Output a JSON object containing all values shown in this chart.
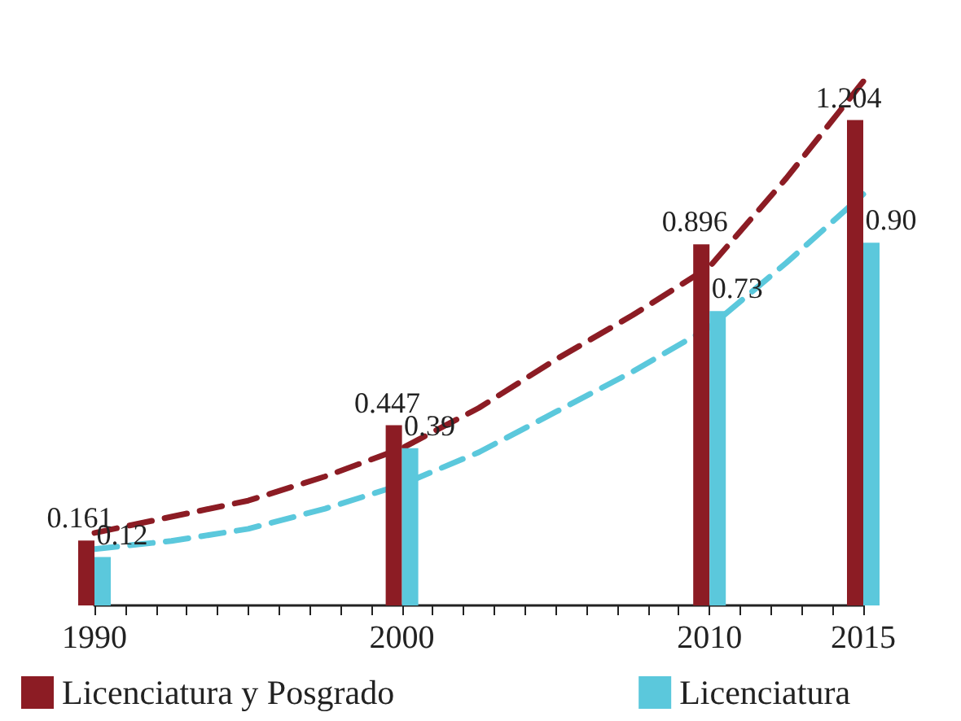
{
  "chart_data": {
    "type": "bar",
    "x": [
      1990,
      2000,
      2010,
      2015
    ],
    "xlim": [
      1990,
      2015
    ],
    "xticks": [
      1990,
      {
        "value": 1991,
        "label": null
      },
      {
        "value": 1992,
        "label": null
      },
      {
        "value": 1993,
        "label": null
      },
      {
        "value": 1994,
        "label": null
      },
      {
        "value": 1995,
        "label": null
      },
      {
        "value": 1996,
        "label": null
      },
      {
        "value": 1997,
        "label": null
      },
      {
        "value": 1998,
        "label": null
      },
      {
        "value": 1999,
        "label": null
      },
      2000,
      {
        "value": 2001,
        "label": null
      },
      {
        "value": 2002,
        "label": null
      },
      {
        "value": 2003,
        "label": null
      },
      {
        "value": 2004,
        "label": null
      },
      {
        "value": 2005,
        "label": null
      },
      {
        "value": 2006,
        "label": null
      },
      {
        "value": 2007,
        "label": null
      },
      {
        "value": 2008,
        "label": null
      },
      {
        "value": 2009,
        "label": null
      },
      2010,
      {
        "value": 2011,
        "label": null
      },
      {
        "value": 2012,
        "label": null
      },
      {
        "value": 2013,
        "label": null
      },
      {
        "value": 2014,
        "label": null
      },
      2015
    ],
    "series": [
      {
        "name": "Licenciatura y Posgrado",
        "color": "#8c1c24",
        "values": [
          0.161,
          0.447,
          0.896,
          1.204
        ],
        "value_labels": [
          "0.161",
          "0.447",
          "0.896",
          "1.204"
        ]
      },
      {
        "name": "Licenciatura",
        "color": "#5bc8dc",
        "values": [
          0.12,
          0.39,
          0.73,
          0.9
        ],
        "value_labels": [
          "0.12",
          "0.39",
          "0.73",
          "0.90"
        ]
      },
      {
        "type": "line",
        "color": "#8c1c24",
        "line_style": "dashed",
        "marker": "none",
        "x": [
          1990,
          1992.5,
          1995,
          1997.5,
          2000,
          2002.5,
          2005,
          2007.5,
          2010,
          2012.5,
          2015
        ],
        "values": [
          0.18,
          0.22,
          0.26,
          0.32,
          0.39,
          0.49,
          0.61,
          0.72,
          0.84,
          1.06,
          1.3
        ]
      },
      {
        "type": "line",
        "color": "#5bc8dc",
        "line_style": "dashed",
        "marker": "none",
        "x": [
          1990,
          1992.5,
          1995,
          1997.5,
          2000,
          2002.5,
          2005,
          2007.5,
          2010,
          2012.5,
          2015
        ],
        "values": [
          0.14,
          0.16,
          0.19,
          0.24,
          0.3,
          0.38,
          0.48,
          0.58,
          0.69,
          0.85,
          1.02
        ]
      }
    ],
    "legend": "bottom"
  }
}
